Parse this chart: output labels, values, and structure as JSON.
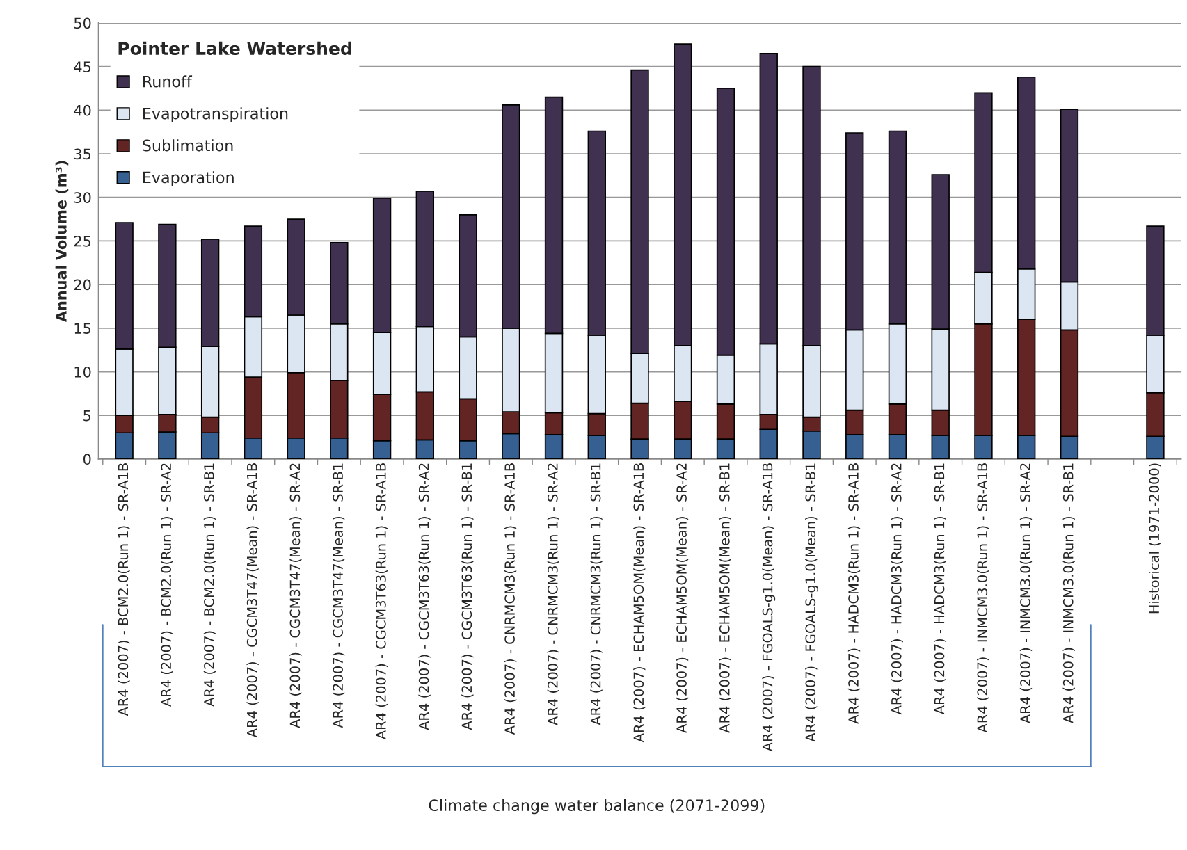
{
  "chart_data": {
    "type": "bar",
    "stacked": true,
    "legend_title": "Pointer Lake Watershed",
    "ylabel": "Annual Volume (m³)",
    "categories": [
      "AR4 (2007) - BCM2.0(Run 1) - SR-A1B",
      "AR4 (2007) - BCM2.0(Run 1) - SR-A2",
      "AR4 (2007) - BCM2.0(Run 1) - SR-B1",
      "AR4 (2007) - CGCM3T47(Mean) - SR-A1B",
      "AR4 (2007) - CGCM3T47(Mean) - SR-A2",
      "AR4 (2007) - CGCM3T47(Mean) - SR-B1",
      "AR4 (2007) - CGCM3T63(Run 1) - SR-A1B",
      "AR4 (2007) - CGCM3T63(Run 1) - SR-A2",
      "AR4 (2007) - CGCM3T63(Run 1) - SR-B1",
      "AR4 (2007) - CNRMCM3(Run 1) - SR-A1B",
      "AR4 (2007) - CNRMCM3(Run 1) - SR-A2",
      "AR4 (2007) - CNRMCM3(Run 1) - SR-B1",
      "AR4 (2007) - ECHAM5OM(Mean) - SR-A1B",
      "AR4 (2007) - ECHAM5OM(Mean) - SR-A2",
      "AR4 (2007) - ECHAM5OM(Mean) - SR-B1",
      "AR4 (2007) - FGOALS-g1.0(Mean) - SR-A1B",
      "AR4 (2007) - FGOALS-g1.0(Mean) - SR-B1",
      "AR4 (2007) - HADCM3(Run 1) - SR-A1B",
      "AR4 (2007) - HADCM3(Run 1) - SR-A2",
      "AR4 (2007) - HADCM3(Run 1) - SR-B1",
      "AR4 (2007) - INMCM3.0(Run 1) - SR-A1B",
      "AR4 (2007) - INMCM3.0(Run 1) - SR-A2",
      "AR4 (2007) - INMCM3.0(Run 1) - SR-B1",
      null,
      "Historical (1971-2000)"
    ],
    "series": [
      {
        "name": "Evaporation",
        "color": "#376092",
        "values": [
          3.0,
          3.1,
          3.0,
          2.4,
          2.4,
          2.4,
          2.1,
          2.2,
          2.1,
          2.9,
          2.8,
          2.7,
          2.3,
          2.3,
          2.3,
          3.4,
          3.2,
          2.8,
          2.8,
          2.7,
          2.7,
          2.7,
          2.6,
          null,
          2.6
        ]
      },
      {
        "name": "Sublimation",
        "color": "#632523",
        "values": [
          2.0,
          2.0,
          1.8,
          7.0,
          7.5,
          6.6,
          5.3,
          5.5,
          4.8,
          2.5,
          2.5,
          2.5,
          4.1,
          4.3,
          4.0,
          1.7,
          1.6,
          2.8,
          3.5,
          2.9,
          12.8,
          13.3,
          12.2,
          null,
          5.0
        ]
      },
      {
        "name": "Evapotranspiration",
        "color": "#dce6f2",
        "values": [
          7.6,
          7.7,
          8.1,
          6.9,
          6.6,
          6.5,
          7.1,
          7.5,
          7.1,
          9.6,
          9.1,
          9.0,
          5.7,
          6.4,
          5.6,
          8.1,
          8.2,
          9.2,
          9.2,
          9.3,
          5.9,
          5.8,
          5.5,
          null,
          6.6
        ]
      },
      {
        "name": "Runoff",
        "color": "#403151",
        "values": [
          14.5,
          14.1,
          12.3,
          10.4,
          11.0,
          9.3,
          15.4,
          15.5,
          14.0,
          25.6,
          27.1,
          23.4,
          32.5,
          34.6,
          30.6,
          33.3,
          32.0,
          22.6,
          22.1,
          17.7,
          20.6,
          22.0,
          19.8,
          null,
          12.5
        ]
      }
    ],
    "ylim": [
      0,
      50
    ],
    "yticks": [
      0,
      5,
      10,
      15,
      20,
      25,
      30,
      35,
      40,
      45,
      50
    ],
    "grid": "y",
    "legend": "top left",
    "annotations": [
      "Climate change water balance (2071-2099)"
    ]
  }
}
